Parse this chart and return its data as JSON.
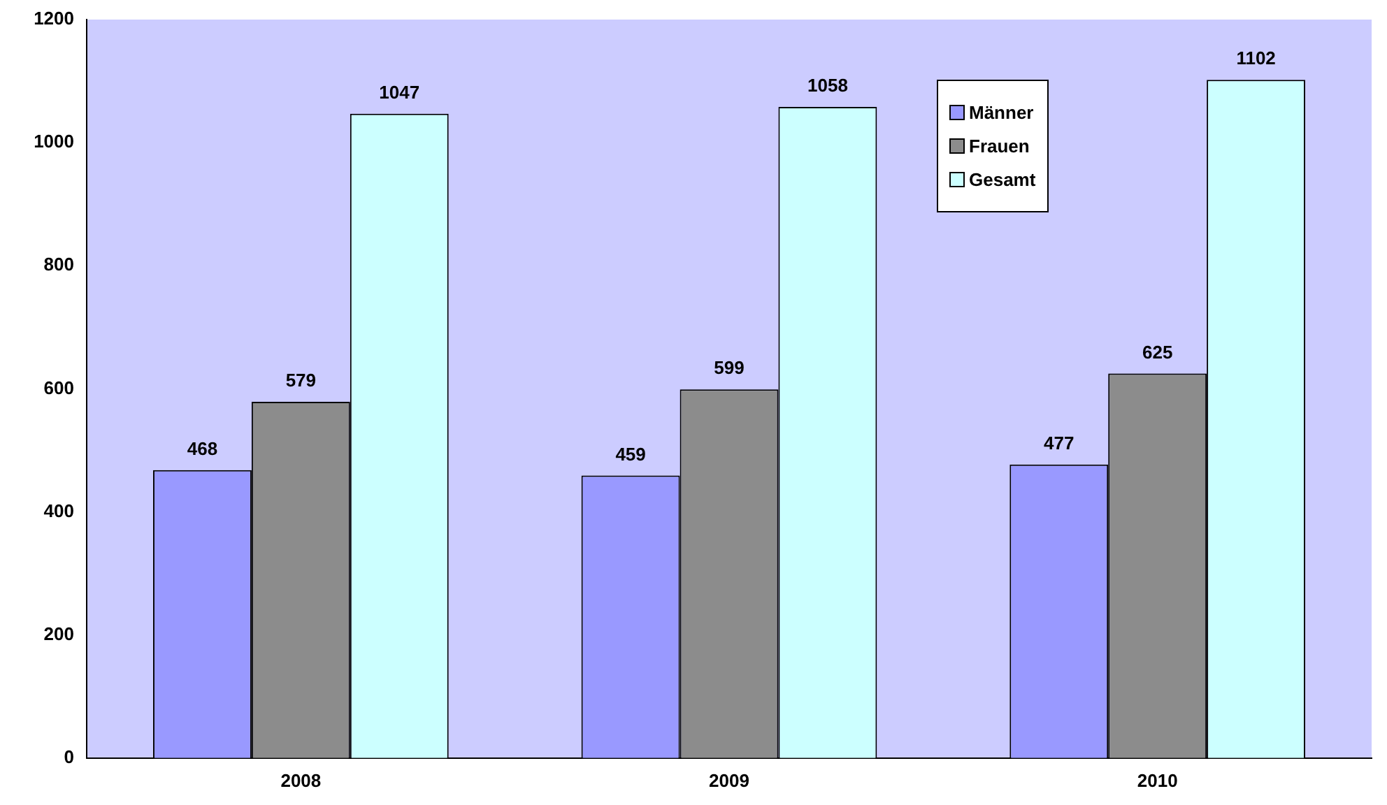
{
  "chart_data": {
    "type": "bar",
    "categories": [
      "2008",
      "2009",
      "2010"
    ],
    "series": [
      {
        "name": "Männer",
        "color": "#9999ff",
        "values": [
          468,
          459,
          477
        ]
      },
      {
        "name": "Frauen",
        "color": "#8c8c8c",
        "values": [
          579,
          599,
          625
        ]
      },
      {
        "name": "Gesamt",
        "color": "#ccffff",
        "values": [
          1047,
          1058,
          1102
        ]
      }
    ],
    "ylim": [
      0,
      1200
    ],
    "yticks": [
      0,
      200,
      400,
      600,
      800,
      1000,
      1200
    ],
    "grid": false,
    "legend": "top right",
    "data_labels": true
  }
}
